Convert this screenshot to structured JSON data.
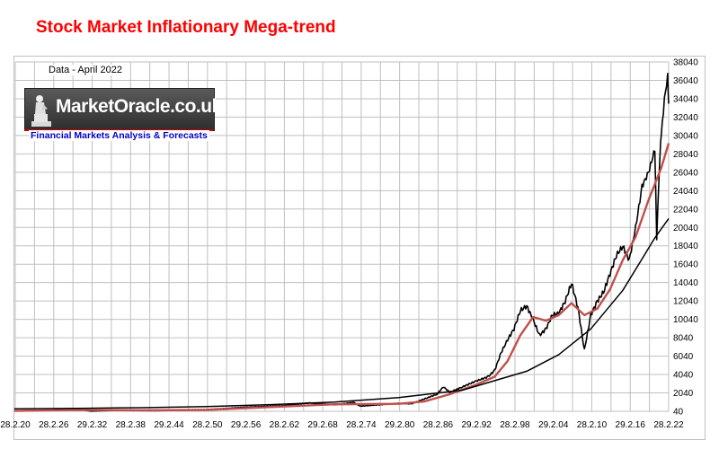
{
  "chart_data": {
    "type": "line",
    "title": "Stock Market Inflationary Mega-trend",
    "note": "Data -  April 2022",
    "xlabel": "",
    "ylabel": "",
    "x_tick_labels": [
      "28.2.20",
      "28.2.26",
      "29.2.32",
      "28.2.38",
      "29.2.44",
      "28.2.50",
      "29.2.56",
      "28.2.62",
      "29.2.68",
      "28.2.74",
      "29.2.80",
      "28.2.86",
      "29.2.92",
      "28.2.98",
      "29.2.04",
      "28.2.10",
      "29.2.16",
      "28.2.22"
    ],
    "y_tick_labels": [
      "40",
      "2040",
      "4040",
      "6040",
      "8040",
      "10040",
      "12040",
      "14040",
      "16040",
      "18040",
      "20040",
      "22040",
      "24040",
      "26040",
      "28040",
      "30040",
      "32040",
      "34040",
      "36040",
      "38040"
    ],
    "xlim": [
      1920.16,
      2022.16
    ],
    "ylim": [
      40,
      38040
    ],
    "grid": true,
    "legend": "none",
    "series": [
      {
        "role": "index",
        "color": "#000000",
        "points": [
          [
            1920,
            100
          ],
          [
            1926,
            150
          ],
          [
            1929,
            350
          ],
          [
            1932,
            60
          ],
          [
            1937,
            160
          ],
          [
            1942,
            100
          ],
          [
            1946,
            200
          ],
          [
            1950,
            220
          ],
          [
            1956,
            480
          ],
          [
            1962,
            650
          ],
          [
            1966,
            950
          ],
          [
            1970,
            750
          ],
          [
            1973,
            1000
          ],
          [
            1974,
            600
          ],
          [
            1980,
            900
          ],
          [
            1982,
            850
          ],
          [
            1986,
            1900
          ],
          [
            1987,
            2700
          ],
          [
            1988,
            2100
          ],
          [
            1990,
            2700
          ],
          [
            1992,
            3300
          ],
          [
            1994,
            3800
          ],
          [
            1995,
            4500
          ],
          [
            1996,
            6400
          ],
          [
            1997,
            7800
          ],
          [
            1998,
            9000
          ],
          [
            1999,
            11000
          ],
          [
            2000,
            11500
          ],
          [
            2001,
            10000
          ],
          [
            2002,
            8300
          ],
          [
            2003,
            9000
          ],
          [
            2004,
            10500
          ],
          [
            2005,
            10700
          ],
          [
            2006,
            12000
          ],
          [
            2007,
            14000
          ],
          [
            2008,
            11300
          ],
          [
            2009,
            6700
          ],
          [
            2010,
            10500
          ],
          [
            2011,
            12000
          ],
          [
            2012,
            13000
          ],
          [
            2013,
            15000
          ],
          [
            2014,
            17000
          ],
          [
            2015,
            18000
          ],
          [
            2016,
            16500
          ],
          [
            2017,
            20000
          ],
          [
            2018,
            24500
          ],
          [
            2019,
            26000
          ],
          [
            2020,
            28500
          ],
          [
            2020.3,
            19000
          ],
          [
            2020.8,
            28000
          ],
          [
            2021,
            30000
          ],
          [
            2021.5,
            34000
          ],
          [
            2022,
            36500
          ],
          [
            2022.16,
            33500
          ]
        ]
      },
      {
        "role": "moving-average",
        "color": "#c0504d",
        "points": [
          [
            1920,
            80
          ],
          [
            1930,
            200
          ],
          [
            1940,
            140
          ],
          [
            1950,
            190
          ],
          [
            1960,
            500
          ],
          [
            1970,
            800
          ],
          [
            1980,
            850
          ],
          [
            1984,
            1100
          ],
          [
            1988,
            1900
          ],
          [
            1992,
            2900
          ],
          [
            1995,
            3800
          ],
          [
            1997,
            5500
          ],
          [
            1999,
            8300
          ],
          [
            2001,
            10300
          ],
          [
            2003,
            9900
          ],
          [
            2005,
            10500
          ],
          [
            2007,
            11800
          ],
          [
            2009,
            10500
          ],
          [
            2011,
            11200
          ],
          [
            2013,
            13300
          ],
          [
            2015,
            16500
          ],
          [
            2017,
            19000
          ],
          [
            2019,
            23000
          ],
          [
            2021,
            26500
          ],
          [
            2022.16,
            29200
          ]
        ]
      },
      {
        "role": "exponential-trend",
        "color": "#000000",
        "points": [
          [
            1920,
            300
          ],
          [
            1930,
            360
          ],
          [
            1940,
            430
          ],
          [
            1950,
            560
          ],
          [
            1960,
            760
          ],
          [
            1970,
            1050
          ],
          [
            1980,
            1520
          ],
          [
            1990,
            2350
          ],
          [
            2000,
            4400
          ],
          [
            2005,
            6200
          ],
          [
            2010,
            9000
          ],
          [
            2015,
            13200
          ],
          [
            2018,
            16600
          ],
          [
            2020,
            18900
          ],
          [
            2022.16,
            21000
          ]
        ]
      }
    ]
  },
  "chart_colors": {
    "title": "#ff0000",
    "grid": "#bfbfbf",
    "index": "#000000",
    "moving_average": "#c0504d"
  },
  "logo": {
    "name": "MarketOracle.co.uk",
    "tagline": "Financial Markets Analysis & Forecasts"
  }
}
